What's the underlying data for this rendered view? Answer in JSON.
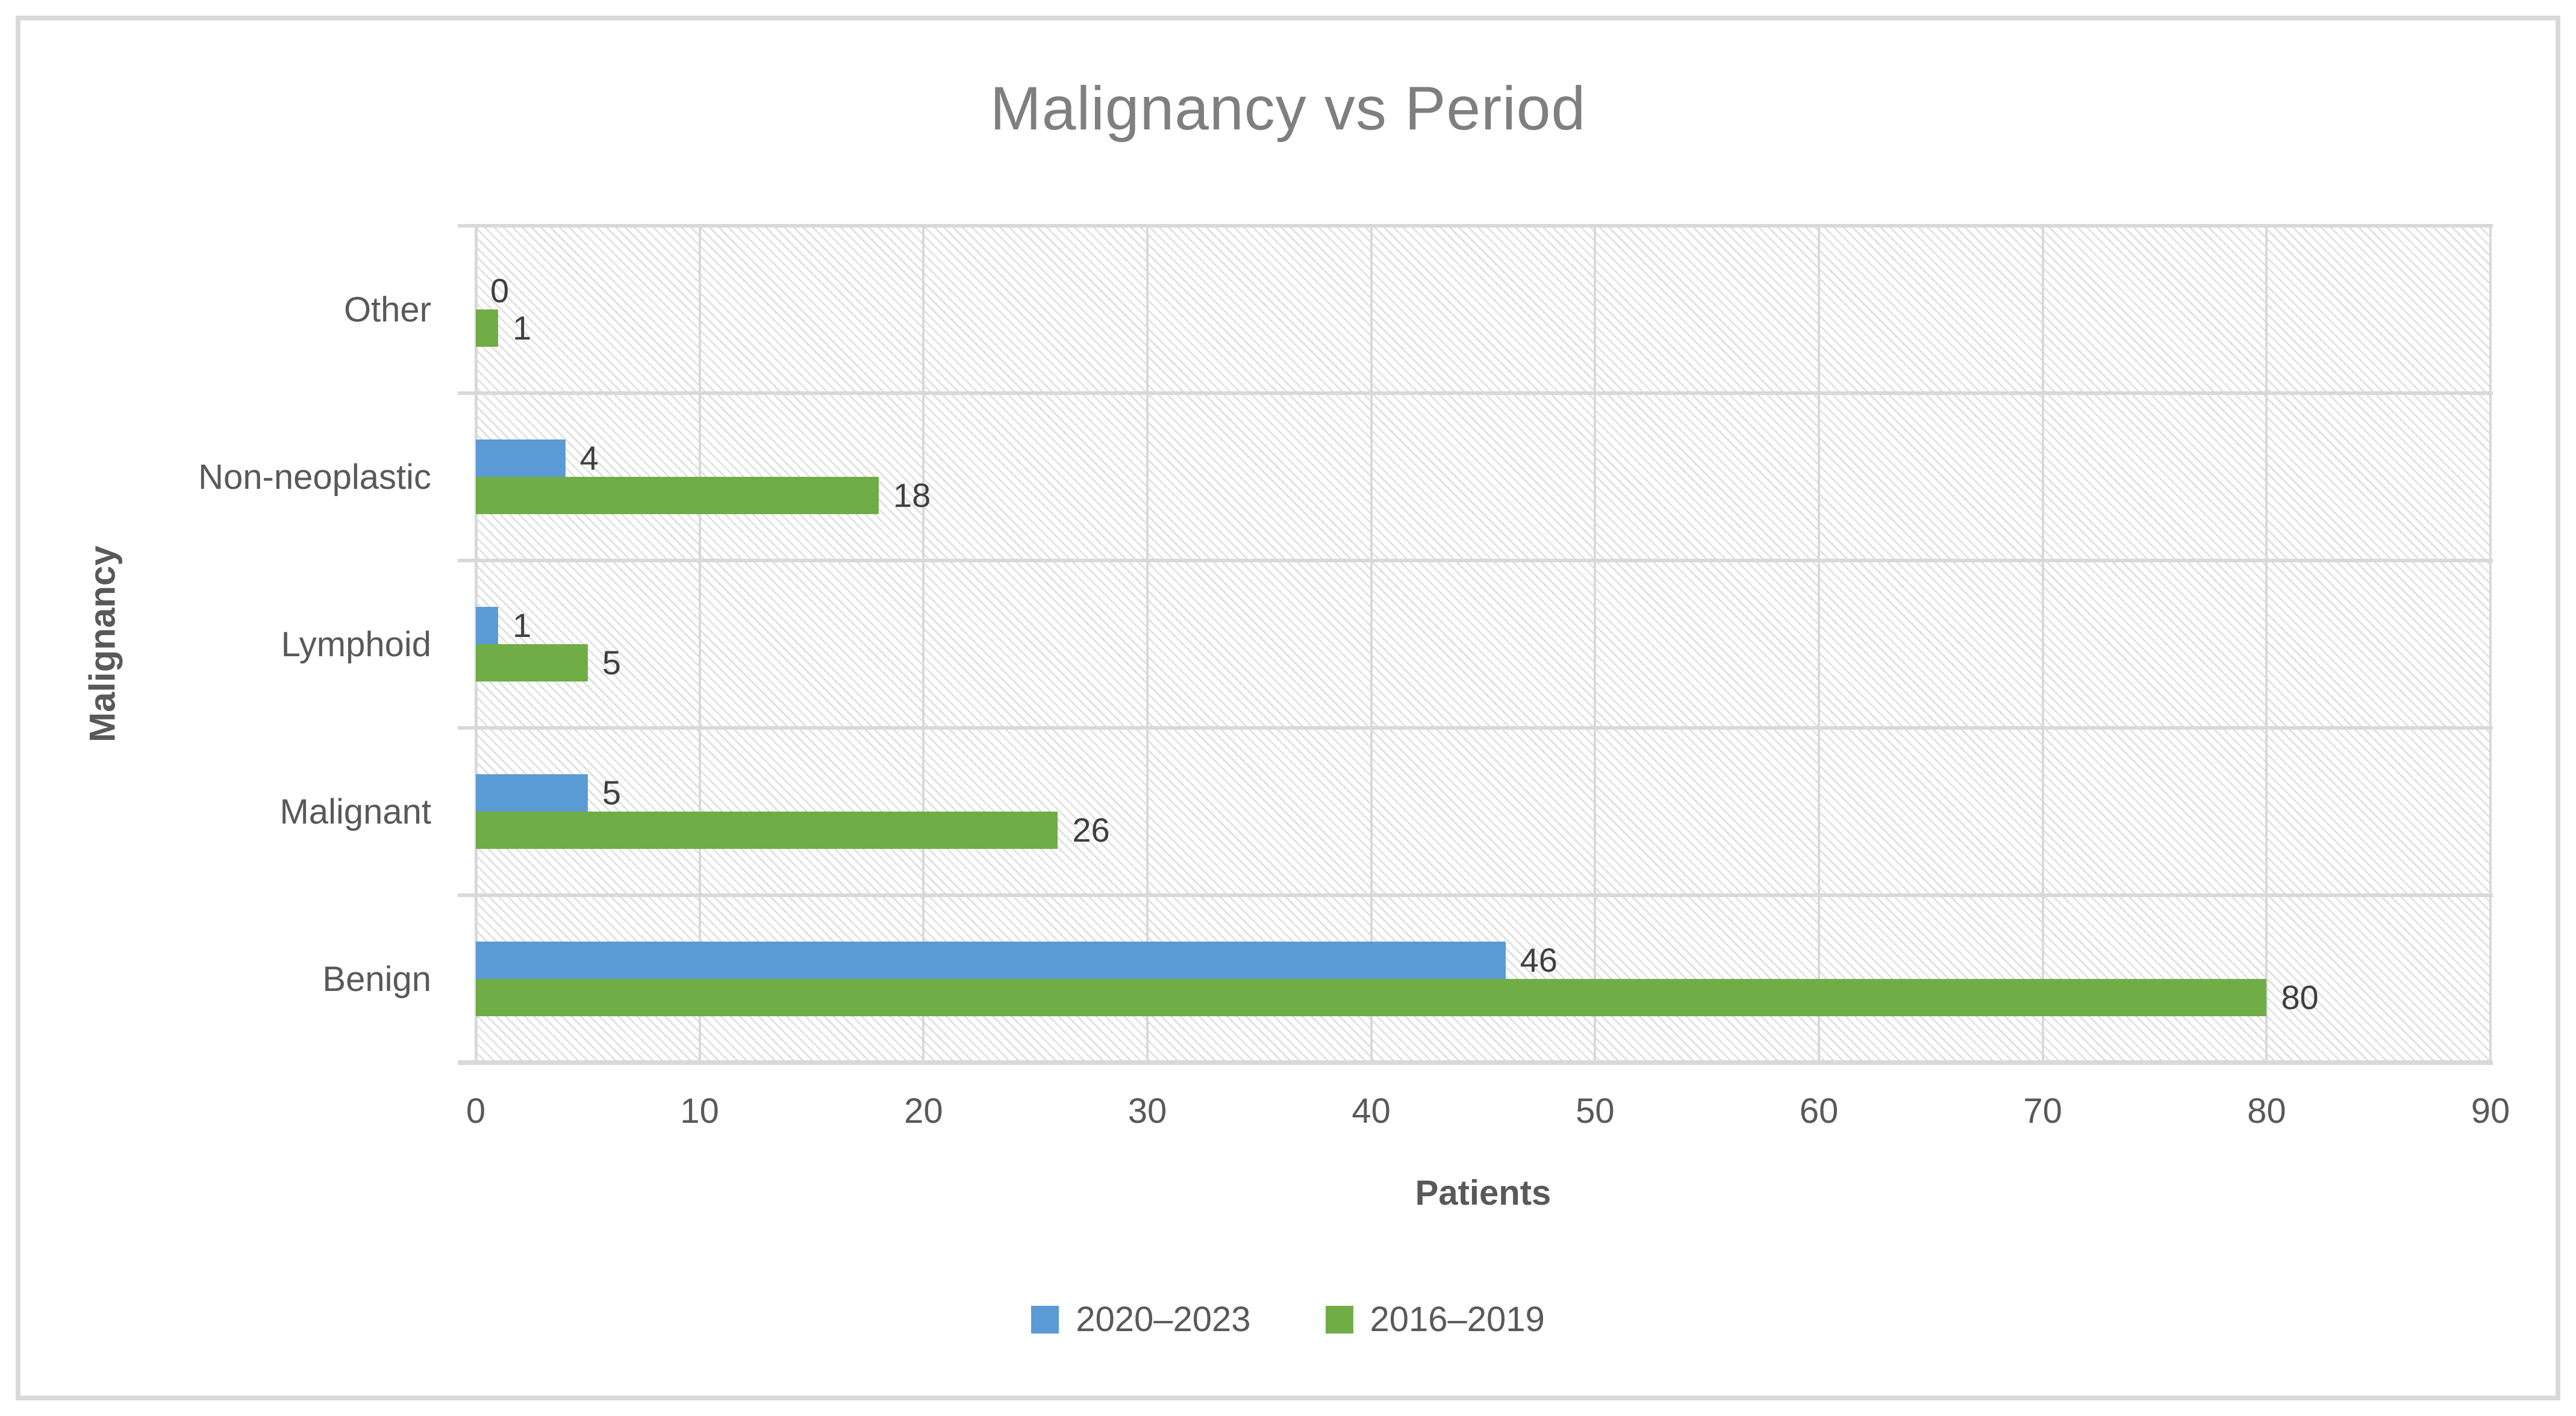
{
  "figure": {
    "background_color": "#FFFFFF",
    "border_color": "#D9D9D9"
  },
  "chart_data": {
    "type": "bar",
    "orientation": "horizontal",
    "title": "Malignancy vs Period",
    "xlabel": "Patients",
    "ylabel": "Malignancy",
    "categories": [
      "Other",
      "Non-neoplastic",
      "Lymphoid",
      "Malignant",
      "Benign"
    ],
    "series": [
      {
        "name": "2020–2023",
        "color": "#5B9BD5",
        "values": [
          0,
          4,
          1,
          5,
          46
        ]
      },
      {
        "name": "2016–2019",
        "color": "#70AD47",
        "values": [
          1,
          18,
          5,
          26,
          80
        ]
      }
    ],
    "xlim": [
      0,
      90
    ],
    "xticks": [
      0,
      10,
      20,
      30,
      40,
      50,
      60,
      70,
      80,
      90
    ],
    "grid": true,
    "data_labels": true,
    "legend_position": "bottom",
    "colors": {
      "title_text": "#7F7F7F",
      "axis_text": "#595959",
      "data_label_text": "#3F3F3F",
      "gridline": "#D9D9D9",
      "plot_hatch": "#E2E2E2"
    }
  }
}
